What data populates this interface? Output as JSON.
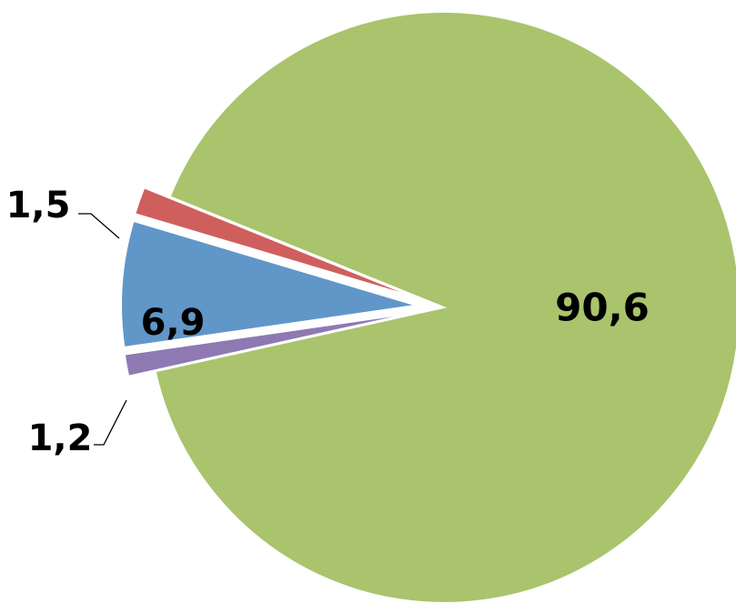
{
  "chart_data": {
    "type": "pie",
    "title": "",
    "slices": [
      {
        "label": "90,6",
        "value": 90.6,
        "color": "#A9C46C"
      },
      {
        "label": "1,2",
        "value": 1.2,
        "color": "#8E79B3"
      },
      {
        "label": "6,9",
        "value": 6.9,
        "color": "#6196C9"
      },
      {
        "label": "1,5",
        "value": 1.5,
        "color": "#CF5F5D"
      }
    ],
    "legend": "none",
    "exploded": true
  }
}
